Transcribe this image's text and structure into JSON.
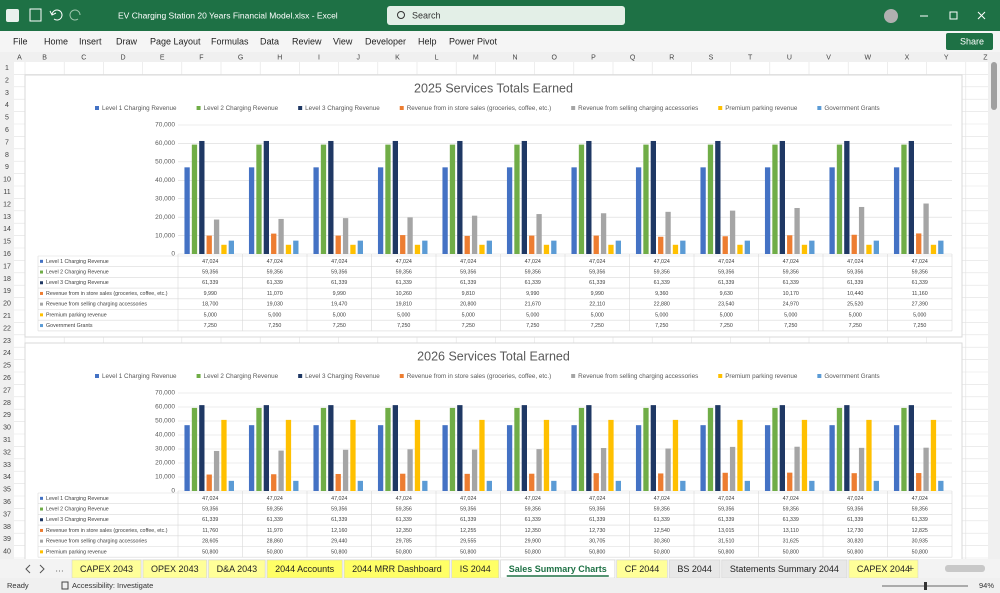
{
  "window": {
    "title": "EV Charging Station 20 Years Financial Model.xlsx  -  Excel",
    "search": "Search"
  },
  "menu": [
    "File",
    "Home",
    "Insert",
    "Draw",
    "Page Layout",
    "Formulas",
    "Data",
    "Review",
    "View",
    "Developer",
    "Help",
    "Power Pivot"
  ],
  "share": "Share",
  "columns": [
    "A",
    "B",
    "C",
    "D",
    "E",
    "F",
    "G",
    "H",
    "I",
    "J",
    "K",
    "L",
    "M",
    "N",
    "O",
    "P",
    "Q",
    "R",
    "S",
    "T",
    "U",
    "V",
    "W",
    "X",
    "Y",
    "Z"
  ],
  "rows": [
    1,
    2,
    3,
    4,
    5,
    6,
    7,
    8,
    9,
    10,
    11,
    12,
    13,
    14,
    15,
    16,
    17,
    18,
    19,
    20,
    21,
    22,
    23,
    24,
    25,
    26,
    27,
    28,
    29,
    30,
    31,
    32,
    33,
    34,
    35,
    36,
    37,
    38,
    39,
    40
  ],
  "chart_data": [
    {
      "type": "bar",
      "title": "2025 Services Totals Earned",
      "categories": [
        null,
        null,
        null,
        null,
        null,
        null,
        null,
        null,
        null,
        null,
        null,
        null
      ],
      "ylim": [
        0,
        70000
      ],
      "yticks": [
        0,
        {
          "value": 10000,
          "label": "10,000"
        },
        {
          "value": 20000,
          "label": "20,000"
        },
        {
          "value": 30000,
          "label": "30,000"
        },
        {
          "value": 40000,
          "label": "40,000"
        },
        {
          "value": 50000,
          "label": "50,000"
        },
        {
          "value": 60000,
          "label": "60,000"
        },
        {
          "value": 70000,
          "label": "70,000"
        }
      ],
      "grid": true,
      "legend": "top",
      "data_table": true,
      "series": [
        {
          "name": "Level 1 Charging Revenue",
          "color": "#4472c4",
          "values": [
            47024,
            47024,
            47024,
            47024,
            47024,
            47024,
            47024,
            47024,
            47024,
            47024,
            47024,
            47024
          ],
          "value_labels": [
            "47,024",
            "47,024",
            "47,024",
            "47,024",
            "47,024",
            "47,024",
            "47,024",
            "47,024",
            "47,024",
            "47,024",
            "47,024",
            "47,024"
          ]
        },
        {
          "name": "Level 2 Charging Revenue",
          "color": "#70ad47",
          "values": [
            59356,
            59356,
            59356,
            59356,
            59356,
            59356,
            59356,
            59356,
            59356,
            59356,
            59356,
            59356
          ],
          "value_labels": [
            "59,356",
            "59,356",
            "59,356",
            "59,356",
            "59,356",
            "59,356",
            "59,356",
            "59,356",
            "59,356",
            "59,356",
            "59,356",
            "59,356"
          ]
        },
        {
          "name": "Level 3 Charging Revenue",
          "color": "#1f3864",
          "values": [
            61339,
            61339,
            61339,
            61339,
            61339,
            61339,
            61339,
            61339,
            61339,
            61339,
            61339,
            61339
          ],
          "value_labels": [
            "61,339",
            "61,339",
            "61,339",
            "61,339",
            "61,339",
            "61,339",
            "61,339",
            "61,339",
            "61,339",
            "61,339",
            "61,339",
            "61,339"
          ]
        },
        {
          "name": "Revenue from in store sales (groceries, coffee, etc.)",
          "color": "#ed7d31",
          "values": [
            9990,
            11070,
            9990,
            10260,
            9810,
            9990,
            9990,
            9360,
            9630,
            10170,
            10440,
            11160
          ],
          "value_labels": [
            "9,990",
            "11,070",
            "9,990",
            "10,260",
            "9,810",
            "9,990",
            "9,990",
            "9,360",
            "9,630",
            "10,170",
            "10,440",
            "11,160"
          ]
        },
        {
          "name": "Revenue from selling charging accessories",
          "color": "#a5a5a5",
          "values": [
            18700,
            19030,
            19470,
            19810,
            20800,
            21670,
            22110,
            22880,
            23540,
            24970,
            25520,
            27390
          ],
          "value_labels": [
            "18,700",
            "19,030",
            "19,470",
            "19,810",
            "20,800",
            "21,670",
            "22,110",
            "22,880",
            "23,540",
            "24,970",
            "25,520",
            "27,390"
          ]
        },
        {
          "name": "Premium parking revenue",
          "color": "#ffc000",
          "values": [
            5000,
            5000,
            5000,
            5000,
            5000,
            5000,
            5000,
            5000,
            5000,
            5000,
            5000,
            5000
          ],
          "value_labels": [
            "5,000",
            "5,000",
            "5,000",
            "5,000",
            "5,000",
            "5,000",
            "5,000",
            "5,000",
            "5,000",
            "5,000",
            "5,000",
            "5,000"
          ]
        },
        {
          "name": "Government Grants",
          "color": "#5b9bd5",
          "values": [
            7250,
            7250,
            7250,
            7250,
            7250,
            7250,
            7250,
            7250,
            7250,
            7250,
            7250,
            7250
          ],
          "value_labels": [
            "7,250",
            "7,250",
            "7,250",
            "7,250",
            "7,250",
            "7,250",
            "7,250",
            "7,250",
            "7,250",
            "7,250",
            "7,250",
            "7,250"
          ]
        }
      ]
    },
    {
      "type": "bar",
      "title": "2026 Services Total Earned",
      "categories": [
        null,
        null,
        null,
        null,
        null,
        null,
        null,
        null,
        null,
        null,
        null,
        null
      ],
      "ylim": [
        0,
        70000
      ],
      "yticks": [
        0,
        {
          "value": 10000,
          "label": "10,000"
        },
        {
          "value": 20000,
          "label": "20,000"
        },
        {
          "value": 30000,
          "label": "30,000"
        },
        {
          "value": 40000,
          "label": "40,000"
        },
        {
          "value": 50000,
          "label": "50,000"
        },
        {
          "value": 60000,
          "label": "60,000"
        },
        {
          "value": 70000,
          "label": "70,000"
        }
      ],
      "grid": true,
      "legend": "top",
      "data_table": true,
      "series": [
        {
          "name": "Level 1 Charging Revenue",
          "color": "#4472c4",
          "values": [
            47024,
            47024,
            47024,
            47024,
            47024,
            47024,
            47024,
            47024,
            47024,
            47024,
            47024,
            47024
          ],
          "value_labels": [
            "47,024",
            "47,024",
            "47,024",
            "47,024",
            "47,024",
            "47,024",
            "47,024",
            "47,024",
            "47,024",
            "47,024",
            "47,024",
            "47,024"
          ]
        },
        {
          "name": "Level 2 Charging Revenue",
          "color": "#70ad47",
          "values": [
            59356,
            59356,
            59356,
            59356,
            59356,
            59356,
            59356,
            59356,
            59356,
            59356,
            59356,
            59356
          ],
          "value_labels": [
            "59,356",
            "59,356",
            "59,356",
            "59,356",
            "59,356",
            "59,356",
            "59,356",
            "59,356",
            "59,356",
            "59,356",
            "59,356",
            "59,356"
          ]
        },
        {
          "name": "Level 3 Charging Revenue",
          "color": "#1f3864",
          "values": [
            61339,
            61339,
            61339,
            61339,
            61339,
            61339,
            61339,
            61339,
            61339,
            61339,
            61339,
            61339
          ],
          "value_labels": [
            "61,339",
            "61,339",
            "61,339",
            "61,339",
            "61,339",
            "61,339",
            "61,339",
            "61,339",
            "61,339",
            "61,339",
            "61,339",
            "61,339"
          ]
        },
        {
          "name": "Revenue from in store sales (groceries, coffee, etc.)",
          "color": "#ed7d31",
          "values": [
            11760,
            11970,
            12160,
            12350,
            12255,
            12350,
            12730,
            12540,
            13015,
            13110,
            12730,
            12825
          ],
          "value_labels": [
            "11,760",
            "11,970",
            "12,160",
            "12,350",
            "12,255",
            "12,350",
            "12,730",
            "12,540",
            "13,015",
            "13,110",
            "12,730",
            "12,825"
          ]
        },
        {
          "name": "Revenue from selling charging accessories",
          "color": "#a5a5a5",
          "values": [
            28605,
            28860,
            29440,
            29785,
            29555,
            29900,
            30705,
            30360,
            31510,
            31625,
            30820,
            30935
          ],
          "value_labels": [
            "28,605",
            "28,860",
            "29,440",
            "29,785",
            "29,555",
            "29,900",
            "30,705",
            "30,360",
            "31,510",
            "31,625",
            "30,820",
            "30,935"
          ]
        },
        {
          "name": "Premium parking revenue",
          "color": "#ffc000",
          "values": [
            50800,
            50800,
            50800,
            50800,
            50800,
            50800,
            50800,
            50800,
            50800,
            50800,
            50800,
            50800
          ],
          "value_labels": [
            "50,800",
            "50,800",
            "50,800",
            "50,800",
            "50,800",
            "50,800",
            "50,800",
            "50,800",
            "50,800",
            "50,800",
            "50,800",
            "50,800"
          ]
        },
        {
          "name": "Government Grants",
          "color": "#5b9bd5",
          "values": [
            7250,
            7250,
            7250,
            7250,
            7250,
            7250,
            7250,
            7250,
            7250,
            7250,
            7250,
            7250
          ]
        }
      ]
    }
  ],
  "sheet_tabs": [
    {
      "name": "CAPEX 2043",
      "color": "#ffff99"
    },
    {
      "name": "OPEX 2043",
      "color": "#ffff99"
    },
    {
      "name": "D&A 2043",
      "color": "#ffff99"
    },
    {
      "name": "2044 Accounts",
      "color": "#ffff66"
    },
    {
      "name": "2044 MRR Dashboard",
      "color": "#ffff66"
    },
    {
      "name": "IS 2044",
      "color": "#ffff66"
    },
    {
      "name": "Sales Summary Charts",
      "color": "#ffffff",
      "active": true
    },
    {
      "name": "CF 2044",
      "color": "#ffff99"
    },
    {
      "name": "BS 2044",
      "color": "#e8e8e8"
    },
    {
      "name": "Statements Summary 2044",
      "color": "#e8e8e8"
    },
    {
      "name": "CAPEX 2044",
      "color": "#ffff99"
    }
  ],
  "status": {
    "ready": "Ready",
    "accessibility": "Accessibility: Investigate",
    "zoom": "94%"
  }
}
